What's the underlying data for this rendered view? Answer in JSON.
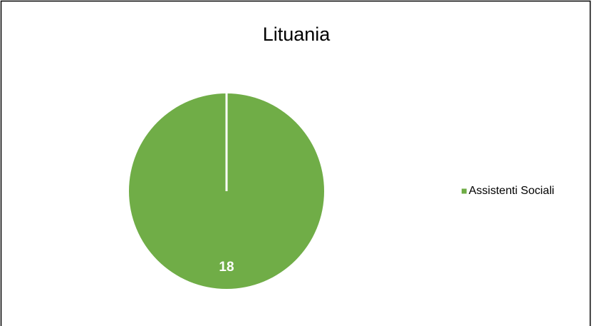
{
  "chart_data": {
    "type": "pie",
    "title": "Lituania",
    "categories": [
      "Assistenti Sociali"
    ],
    "values": [
      18
    ],
    "colors": [
      "#70ad47"
    ],
    "legend": "right"
  }
}
